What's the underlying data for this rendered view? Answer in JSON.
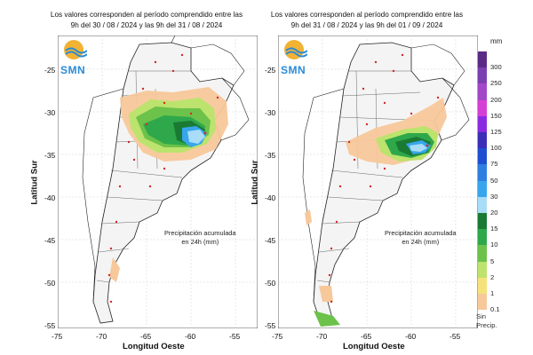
{
  "panels": [
    {
      "title_line1": "Los valores corresponden al período comprendido entre las",
      "title_line2": "9h del 30 / 08 / 2024  y las 9h del 31 / 08 / 2024",
      "caption_line1": "Precipitación acumulada",
      "caption_line2": "en 24h (mm)",
      "logo_text": "SMN",
      "y_label": "Latitud Sur",
      "x_label": "Longitud Oeste",
      "y_ticks": [
        "-25",
        "-30",
        "-35",
        "-40",
        "-45",
        "-50",
        "-55"
      ],
      "x_ticks": [
        "-75",
        "-70",
        "-65",
        "-60",
        "-55"
      ]
    },
    {
      "title_line1": "Los valores corresponden al período comprendido entre las",
      "title_line2": "9h del 31 / 08 / 2024  y las 9h del 01 / 09 / 2024",
      "caption_line1": "Precipitación acumulada",
      "caption_line2": "en 24h (mm)",
      "logo_text": "SMN",
      "y_label": "Latitud Sur",
      "x_label": "Longitud Oeste",
      "y_ticks": [
        "-25",
        "-30",
        "-35",
        "-40",
        "-45",
        "-50",
        "-55"
      ],
      "x_ticks": [
        "-75",
        "-70",
        "-65",
        "-60",
        "-55"
      ]
    }
  ],
  "legend": {
    "unit": "mm",
    "levels": [
      {
        "label": "300",
        "color": "#5b2a86"
      },
      {
        "label": "250",
        "color": "#7b3fb0"
      },
      {
        "label": "200",
        "color": "#a347c9"
      },
      {
        "label": "150",
        "color": "#d63fd6"
      },
      {
        "label": "125",
        "color": "#8a2be2"
      },
      {
        "label": "100",
        "color": "#3b2fb8"
      },
      {
        "label": "75",
        "color": "#1f4fd1"
      },
      {
        "label": "50",
        "color": "#2f7fe0"
      },
      {
        "label": "30",
        "color": "#37a6ec"
      },
      {
        "label": "20",
        "color": "#a9dcf7"
      },
      {
        "label": "15",
        "color": "#1a7a33"
      },
      {
        "label": "10",
        "color": "#2ea84a"
      },
      {
        "label": "5",
        "color": "#6cc24a"
      },
      {
        "label": "2",
        "color": "#bce36d"
      },
      {
        "label": "1",
        "color": "#f5e27a"
      },
      {
        "label": "0.1",
        "color": "#f7c89a"
      }
    ],
    "no_precip_line1": "Sin",
    "no_precip_line2": "Precip."
  }
}
